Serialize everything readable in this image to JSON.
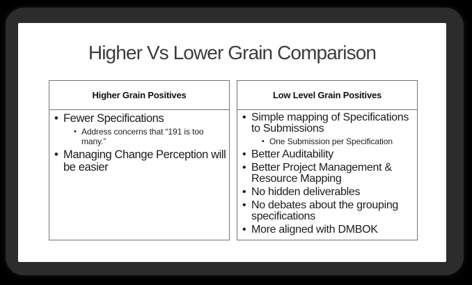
{
  "slide": {
    "title": "Higher Vs Lower Grain Comparison"
  },
  "boxes": [
    {
      "header": "Higher Grain Positives",
      "items": [
        {
          "level": 1,
          "text": "Fewer Specifications"
        },
        {
          "level": 2,
          "text": "Address concerns that “191 is too many.”"
        },
        {
          "level": 1,
          "text": "Managing Change Perception will be easier"
        }
      ]
    },
    {
      "header": "Low Level Grain Positives",
      "items": [
        {
          "level": 1,
          "text": "Simple mapping of Specifications to Submissions"
        },
        {
          "level": 2,
          "text": "One Submission per Specification"
        },
        {
          "level": 1,
          "text": "Better Auditability"
        },
        {
          "level": 1,
          "text": "Better Project Management & Resource Mapping"
        },
        {
          "level": 1,
          "text": "No hidden deliverables"
        },
        {
          "level": 1,
          "text": "No debates about the grouping specifications"
        },
        {
          "level": 1,
          "text": "More aligned with DMBOK"
        }
      ]
    }
  ],
  "colors": {
    "background": "#000000",
    "frame": "#2c2c2c",
    "slide": "#ffffff",
    "box_border": "#757575",
    "body_text": "#1b1b1b",
    "title_text": "#3c3c3c"
  }
}
